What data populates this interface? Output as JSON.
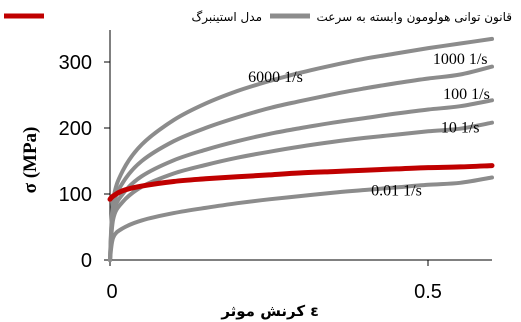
{
  "chart_data": {
    "type": "line",
    "xlabel": "کرنش موثر ε",
    "ylabel": "σ (MPa)",
    "xlim": [
      0,
      0.6
    ],
    "ylim": [
      0,
      350
    ],
    "xticks": [
      "0",
      "0.5"
    ],
    "yticks": [
      "0",
      "100",
      "200",
      "300"
    ],
    "legend": {
      "position": "top",
      "entries": [
        {
          "label": "قانون توانی هولومون وابسته به سرعت",
          "color": "#8c8c8c"
        },
        {
          "label": "مدل استینبرگ",
          "color": "#c00000"
        }
      ]
    },
    "series": [
      {
        "name": "6000 1/s",
        "color": "#8c8c8c",
        "x": [
          0,
          0.005,
          0.02,
          0.05,
          0.1,
          0.15,
          0.2,
          0.25,
          0.3,
          0.35,
          0.4,
          0.45,
          0.5,
          0.55,
          0.6
        ],
        "y": [
          0,
          90,
          135,
          175,
          212,
          237,
          256,
          271,
          284,
          295,
          305,
          313,
          321,
          328,
          335
        ]
      },
      {
        "name": "1000 1/s",
        "color": "#8c8c8c",
        "x": [
          0,
          0.005,
          0.02,
          0.05,
          0.1,
          0.15,
          0.2,
          0.25,
          0.3,
          0.35,
          0.4,
          0.45,
          0.5,
          0.55,
          0.6
        ],
        "y": [
          0,
          80,
          117,
          150,
          180,
          200,
          216,
          230,
          241,
          251,
          260,
          268,
          275,
          281,
          293
        ]
      },
      {
        "name": "100 1/s",
        "color": "#8c8c8c",
        "x": [
          0,
          0.005,
          0.02,
          0.05,
          0.1,
          0.15,
          0.2,
          0.25,
          0.3,
          0.35,
          0.4,
          0.45,
          0.5,
          0.55,
          0.6
        ],
        "y": [
          0,
          70,
          100,
          127,
          151,
          167,
          180,
          191,
          200,
          208,
          215,
          222,
          228,
          233,
          242
        ]
      },
      {
        "name": "10 1/s",
        "color": "#8c8c8c",
        "x": [
          0,
          0.005,
          0.02,
          0.05,
          0.1,
          0.15,
          0.2,
          0.25,
          0.3,
          0.35,
          0.4,
          0.45,
          0.5,
          0.55,
          0.6
        ],
        "y": [
          0,
          62,
          88,
          111,
          131,
          144,
          155,
          164,
          172,
          179,
          185,
          190,
          195,
          199,
          208
        ]
      },
      {
        "name": "Steinberg",
        "color": "#c00000",
        "x": [
          0,
          0.005,
          0.02,
          0.05,
          0.1,
          0.15,
          0.2,
          0.25,
          0.3,
          0.35,
          0.4,
          0.45,
          0.5,
          0.55,
          0.6
        ],
        "y": [
          92,
          97,
          105,
          112,
          119,
          123,
          126,
          129,
          132,
          134,
          136,
          138,
          140,
          141,
          143
        ]
      },
      {
        "name": "0.01 1/s",
        "color": "#8c8c8c",
        "x": [
          0,
          0.005,
          0.02,
          0.05,
          0.1,
          0.15,
          0.2,
          0.25,
          0.3,
          0.35,
          0.4,
          0.45,
          0.5,
          0.55,
          0.6
        ],
        "y": [
          0,
          34,
          48,
          60,
          71,
          79,
          86,
          92,
          97,
          102,
          106,
          110,
          114,
          117,
          125
        ]
      }
    ],
    "annotations": [
      {
        "text": "6000 1/s",
        "x": 0.26,
        "y": 270
      },
      {
        "text": "1000 1/s",
        "x": 0.55,
        "y": 297
      },
      {
        "text": "100 1/s",
        "x": 0.56,
        "y": 244
      },
      {
        "text": "10 1/s",
        "x": 0.55,
        "y": 193
      },
      {
        "text": "0.01 1/s",
        "x": 0.45,
        "y": 98
      }
    ]
  }
}
